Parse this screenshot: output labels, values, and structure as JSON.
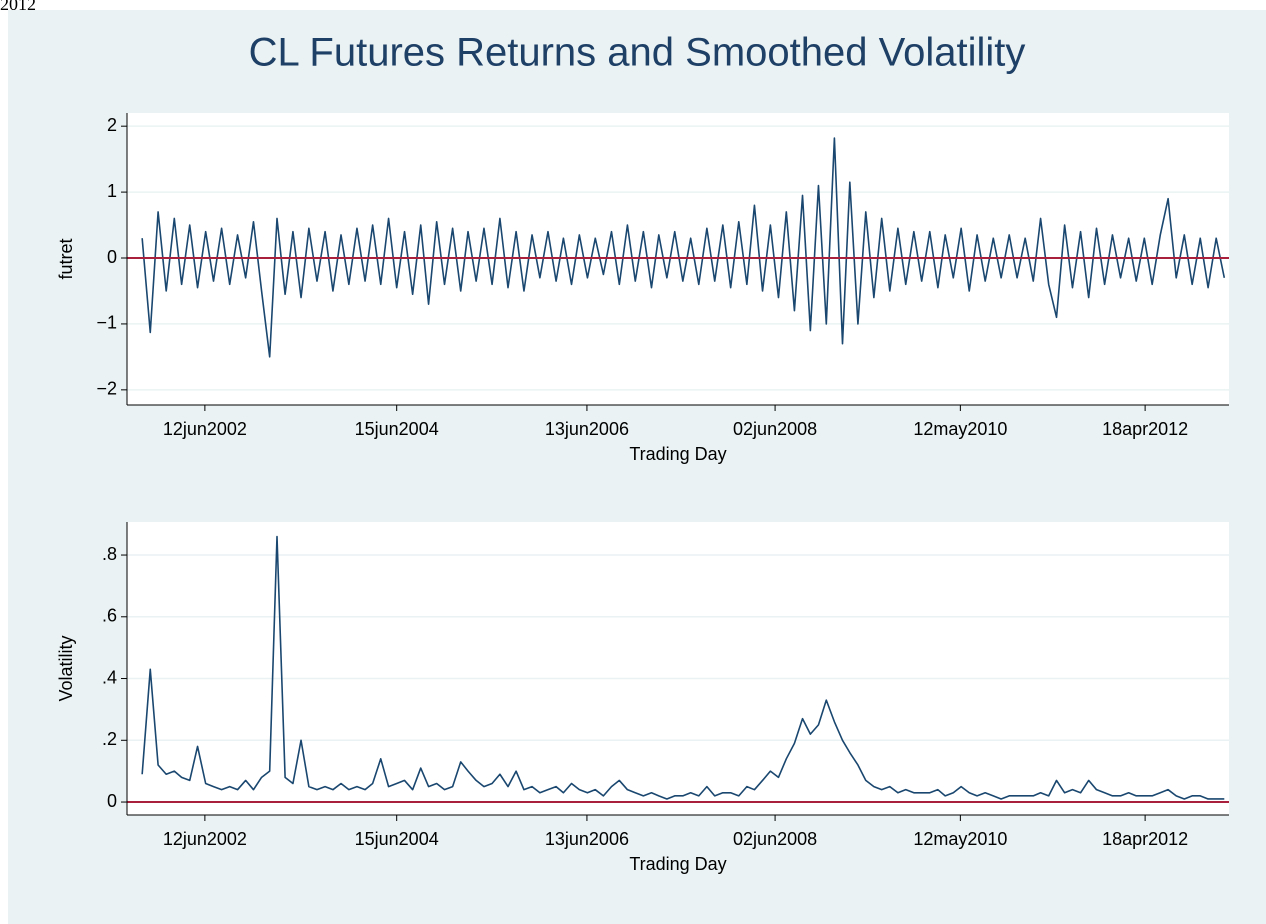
{
  "corner_text": "2012",
  "title": "CL Futures Returns and Smoothed Volatility",
  "chart_data": [
    {
      "type": "line",
      "ylabel": "futret",
      "xlabel": "Trading Day",
      "color": "#1a476f",
      "hline": 0,
      "hline_color": "#a8203c",
      "grid": true,
      "xlim": [
        "2001-08-18",
        "2013-03-05"
      ],
      "xticks": [
        {
          "value": "2002-06-12",
          "label": "12jun2002"
        },
        {
          "value": "2004-06-15",
          "label": "15jun2004"
        },
        {
          "value": "2006-06-13",
          "label": "13jun2006"
        },
        {
          "value": "2008-06-02",
          "label": "02jun2008"
        },
        {
          "value": "2010-05-12",
          "label": "12may2010"
        },
        {
          "value": "2012-04-18",
          "label": "18apr2012"
        }
      ],
      "ylim": [
        -2.23,
        2.2
      ],
      "yticks": [
        {
          "value": -2,
          "label": "−2"
        },
        {
          "value": -1,
          "label": "−1"
        },
        0,
        1,
        2
      ],
      "x": [
        "2001-10-15",
        "2001-11-15",
        "2001-12-15",
        "2002-01-15",
        "2002-02-15",
        "2002-03-15",
        "2002-04-15",
        "2002-05-15",
        "2002-06-15",
        "2002-07-15",
        "2002-08-15",
        "2002-09-15",
        "2002-10-15",
        "2002-11-15",
        "2002-12-15",
        "2003-01-15",
        "2003-02-15",
        "2003-03-15",
        "2003-04-15",
        "2003-05-15",
        "2003-06-15",
        "2003-07-15",
        "2003-08-15",
        "2003-09-15",
        "2003-10-15",
        "2003-11-15",
        "2003-12-15",
        "2004-01-15",
        "2004-02-15",
        "2004-03-15",
        "2004-04-15",
        "2004-05-15",
        "2004-06-15",
        "2004-07-15",
        "2004-08-15",
        "2004-09-15",
        "2004-10-15",
        "2004-11-15",
        "2004-12-15",
        "2005-01-15",
        "2005-02-15",
        "2005-03-15",
        "2005-04-15",
        "2005-05-15",
        "2005-06-15",
        "2005-07-15",
        "2005-08-15",
        "2005-09-15",
        "2005-10-15",
        "2005-11-15",
        "2005-12-15",
        "2006-01-15",
        "2006-02-15",
        "2006-03-15",
        "2006-04-15",
        "2006-05-15",
        "2006-06-15",
        "2006-07-15",
        "2006-08-15",
        "2006-09-15",
        "2006-10-15",
        "2006-11-15",
        "2006-12-15",
        "2007-01-15",
        "2007-02-15",
        "2007-03-15",
        "2007-04-15",
        "2007-05-15",
        "2007-06-15",
        "2007-07-15",
        "2007-08-15",
        "2007-09-15",
        "2007-10-15",
        "2007-11-15",
        "2007-12-15",
        "2008-01-15",
        "2008-02-15",
        "2008-03-15",
        "2008-04-15",
        "2008-05-15",
        "2008-06-15",
        "2008-07-15",
        "2008-08-15",
        "2008-09-15",
        "2008-10-15",
        "2008-11-15",
        "2008-12-15",
        "2009-01-15",
        "2009-02-15",
        "2009-03-15",
        "2009-04-15",
        "2009-05-15",
        "2009-06-15",
        "2009-07-15",
        "2009-08-15",
        "2009-09-15",
        "2009-10-15",
        "2009-11-15",
        "2009-12-15",
        "2010-01-15",
        "2010-02-15",
        "2010-03-15",
        "2010-04-15",
        "2010-05-15",
        "2010-06-15",
        "2010-07-15",
        "2010-08-15",
        "2010-09-15",
        "2010-10-15",
        "2010-11-15",
        "2010-12-15",
        "2011-01-15",
        "2011-02-15",
        "2011-03-15",
        "2011-04-15",
        "2011-05-15",
        "2011-06-15",
        "2011-07-15",
        "2011-08-15",
        "2011-09-15",
        "2011-10-15",
        "2011-11-15",
        "2011-12-15",
        "2012-01-15",
        "2012-02-15",
        "2012-03-15",
        "2012-04-15",
        "2012-05-15",
        "2012-06-15",
        "2012-07-15",
        "2012-08-15",
        "2012-09-15",
        "2012-10-15",
        "2012-11-15",
        "2012-12-15",
        "2013-01-15",
        "2013-02-15"
      ],
      "values": [
        0.3,
        -1.13,
        0.7,
        -0.5,
        0.6,
        -0.4,
        0.5,
        -0.45,
        0.4,
        -0.35,
        0.45,
        -0.4,
        0.35,
        -0.3,
        0.55,
        -0.5,
        -1.5,
        0.6,
        -0.55,
        0.4,
        -0.6,
        0.45,
        -0.35,
        0.4,
        -0.5,
        0.35,
        -0.4,
        0.45,
        -0.35,
        0.5,
        -0.4,
        0.6,
        -0.45,
        0.4,
        -0.55,
        0.5,
        -0.7,
        0.55,
        -0.4,
        0.45,
        -0.5,
        0.4,
        -0.35,
        0.45,
        -0.4,
        0.6,
        -0.45,
        0.4,
        -0.5,
        0.35,
        -0.3,
        0.4,
        -0.35,
        0.3,
        -0.4,
        0.35,
        -0.3,
        0.3,
        -0.25,
        0.4,
        -0.4,
        0.5,
        -0.35,
        0.4,
        -0.45,
        0.35,
        -0.3,
        0.4,
        -0.35,
        0.3,
        -0.4,
        0.45,
        -0.35,
        0.5,
        -0.45,
        0.55,
        -0.4,
        0.8,
        -0.5,
        0.5,
        -0.6,
        0.7,
        -0.8,
        0.95,
        -1.1,
        1.1,
        -1.0,
        1.82,
        -1.3,
        1.15,
        -1.0,
        0.7,
        -0.6,
        0.6,
        -0.5,
        0.45,
        -0.4,
        0.4,
        -0.35,
        0.4,
        -0.45,
        0.35,
        -0.3,
        0.45,
        -0.5,
        0.35,
        -0.35,
        0.3,
        -0.3,
        0.35,
        -0.3,
        0.3,
        -0.35,
        0.6,
        -0.4,
        -0.9,
        0.5,
        -0.45,
        0.4,
        -0.6,
        0.45,
        -0.4,
        0.35,
        -0.3,
        0.3,
        -0.35,
        0.3,
        -0.4,
        0.35,
        0.9,
        -0.3,
        0.35,
        -0.4,
        0.3,
        -0.45,
        0.3,
        -0.3
      ]
    },
    {
      "type": "line",
      "ylabel": "Volatility",
      "xlabel": "Trading Day",
      "color": "#1a476f",
      "hline": 0,
      "hline_color": "#a8203c",
      "grid": true,
      "xlim": [
        "2001-08-18",
        "2013-03-05"
      ],
      "xticks": [
        {
          "value": "2002-06-12",
          "label": "12jun2002"
        },
        {
          "value": "2004-06-15",
          "label": "15jun2004"
        },
        {
          "value": "2006-06-13",
          "label": "13jun2006"
        },
        {
          "value": "2008-06-02",
          "label": "02jun2008"
        },
        {
          "value": "2010-05-12",
          "label": "12may2010"
        },
        {
          "value": "2012-04-18",
          "label": "18apr2012"
        }
      ],
      "ylim": [
        -0.042,
        0.907
      ],
      "yticks": [
        0,
        {
          "value": 0.2,
          "label": ".2"
        },
        {
          "value": 0.4,
          "label": ".4"
        },
        {
          "value": 0.6,
          "label": ".6"
        },
        {
          "value": 0.8,
          "label": ".8"
        }
      ],
      "x": [
        "2001-10-15",
        "2001-11-15",
        "2001-12-15",
        "2002-01-15",
        "2002-02-15",
        "2002-03-15",
        "2002-04-15",
        "2002-05-15",
        "2002-06-15",
        "2002-07-15",
        "2002-08-15",
        "2002-09-15",
        "2002-10-15",
        "2002-11-15",
        "2002-12-15",
        "2003-01-15",
        "2003-02-15",
        "2003-03-15",
        "2003-04-15",
        "2003-05-15",
        "2003-06-15",
        "2003-07-15",
        "2003-08-15",
        "2003-09-15",
        "2003-10-15",
        "2003-11-15",
        "2003-12-15",
        "2004-01-15",
        "2004-02-15",
        "2004-03-15",
        "2004-04-15",
        "2004-05-15",
        "2004-06-15",
        "2004-07-15",
        "2004-08-15",
        "2004-09-15",
        "2004-10-15",
        "2004-11-15",
        "2004-12-15",
        "2005-01-15",
        "2005-02-15",
        "2005-03-15",
        "2005-04-15",
        "2005-05-15",
        "2005-06-15",
        "2005-07-15",
        "2005-08-15",
        "2005-09-15",
        "2005-10-15",
        "2005-11-15",
        "2005-12-15",
        "2006-01-15",
        "2006-02-15",
        "2006-03-15",
        "2006-04-15",
        "2006-05-15",
        "2006-06-15",
        "2006-07-15",
        "2006-08-15",
        "2006-09-15",
        "2006-10-15",
        "2006-11-15",
        "2006-12-15",
        "2007-01-15",
        "2007-02-15",
        "2007-03-15",
        "2007-04-15",
        "2007-05-15",
        "2007-06-15",
        "2007-07-15",
        "2007-08-15",
        "2007-09-15",
        "2007-10-15",
        "2007-11-15",
        "2007-12-15",
        "2008-01-15",
        "2008-02-15",
        "2008-03-15",
        "2008-04-15",
        "2008-05-15",
        "2008-06-15",
        "2008-07-15",
        "2008-08-15",
        "2008-09-15",
        "2008-10-15",
        "2008-11-15",
        "2008-12-15",
        "2009-01-15",
        "2009-02-15",
        "2009-03-15",
        "2009-04-15",
        "2009-05-15",
        "2009-06-15",
        "2009-07-15",
        "2009-08-15",
        "2009-09-15",
        "2009-10-15",
        "2009-11-15",
        "2009-12-15",
        "2010-01-15",
        "2010-02-15",
        "2010-03-15",
        "2010-04-15",
        "2010-05-15",
        "2010-06-15",
        "2010-07-15",
        "2010-08-15",
        "2010-09-15",
        "2010-10-15",
        "2010-11-15",
        "2010-12-15",
        "2011-01-15",
        "2011-02-15",
        "2011-03-15",
        "2011-04-15",
        "2011-05-15",
        "2011-06-15",
        "2011-07-15",
        "2011-08-15",
        "2011-09-15",
        "2011-10-15",
        "2011-11-15",
        "2011-12-15",
        "2012-01-15",
        "2012-02-15",
        "2012-03-15",
        "2012-04-15",
        "2012-05-15",
        "2012-06-15",
        "2012-07-15",
        "2012-08-15",
        "2012-09-15",
        "2012-10-15",
        "2012-11-15",
        "2012-12-15",
        "2013-01-15",
        "2013-02-15"
      ],
      "values": [
        0.09,
        0.43,
        0.12,
        0.09,
        0.1,
        0.08,
        0.07,
        0.18,
        0.06,
        0.05,
        0.04,
        0.05,
        0.04,
        0.07,
        0.04,
        0.08,
        0.1,
        0.86,
        0.08,
        0.06,
        0.2,
        0.05,
        0.04,
        0.05,
        0.04,
        0.06,
        0.04,
        0.05,
        0.04,
        0.06,
        0.14,
        0.05,
        0.06,
        0.07,
        0.04,
        0.11,
        0.05,
        0.06,
        0.04,
        0.05,
        0.13,
        0.1,
        0.07,
        0.05,
        0.06,
        0.09,
        0.05,
        0.1,
        0.04,
        0.05,
        0.03,
        0.04,
        0.05,
        0.03,
        0.06,
        0.04,
        0.03,
        0.04,
        0.02,
        0.05,
        0.07,
        0.04,
        0.03,
        0.02,
        0.03,
        0.02,
        0.01,
        0.02,
        0.02,
        0.03,
        0.02,
        0.05,
        0.02,
        0.03,
        0.03,
        0.02,
        0.05,
        0.04,
        0.07,
        0.1,
        0.08,
        0.14,
        0.19,
        0.27,
        0.22,
        0.25,
        0.33,
        0.26,
        0.2,
        0.16,
        0.12,
        0.07,
        0.05,
        0.04,
        0.05,
        0.03,
        0.04,
        0.03,
        0.03,
        0.03,
        0.04,
        0.02,
        0.03,
        0.05,
        0.03,
        0.02,
        0.03,
        0.02,
        0.01,
        0.02,
        0.02,
        0.02,
        0.02,
        0.03,
        0.02,
        0.07,
        0.03,
        0.04,
        0.03,
        0.07,
        0.04,
        0.03,
        0.02,
        0.02,
        0.03,
        0.02,
        0.02,
        0.02,
        0.03,
        0.04,
        0.02,
        0.01,
        0.02,
        0.02,
        0.01,
        0.01,
        0.01
      ]
    }
  ]
}
